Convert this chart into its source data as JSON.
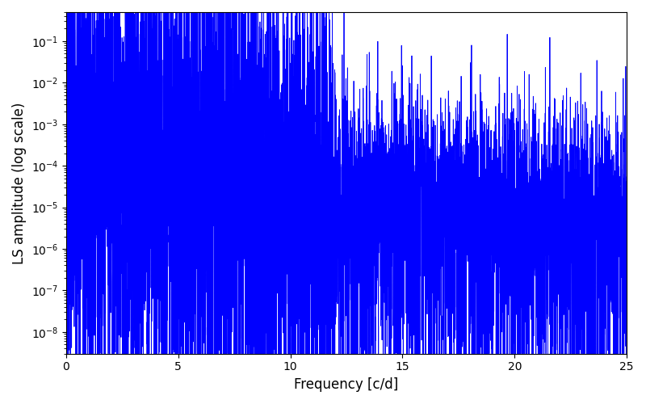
{
  "xlabel": "Frequency [c/d]",
  "ylabel": "LS amplitude (log scale)",
  "line_color": "#0000ff",
  "line_width": 0.6,
  "xlim": [
    0,
    25
  ],
  "ylim": [
    3e-09,
    0.5
  ],
  "xticks": [
    0,
    5,
    10,
    15,
    20,
    25
  ],
  "background_color": "#ffffff",
  "figsize": [
    8.0,
    5.0
  ],
  "dpi": 100,
  "num_points": 8000,
  "seed": 7
}
